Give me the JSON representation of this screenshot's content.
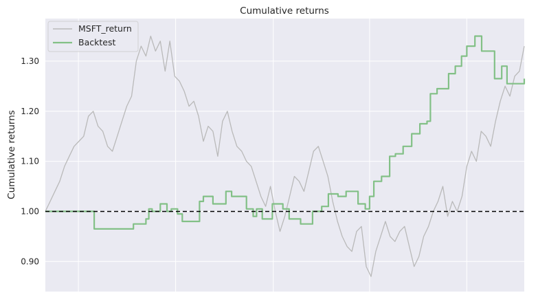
{
  "chart_data": {
    "type": "line",
    "title": "Cumulative returns",
    "xlabel": "",
    "ylabel": "Cumulative returns",
    "ylim": [
      0.84,
      1.385
    ],
    "xlim": [
      0,
      100
    ],
    "y_ticks": [
      0.9,
      1.0,
      1.1,
      1.2,
      1.3
    ],
    "y_tick_labels": [
      "0.90",
      "1.00",
      "1.10",
      "1.20",
      "1.30"
    ],
    "x_grid_positions": [
      6.9,
      27.2,
      47.6,
      67.7,
      88.0
    ],
    "x_tick_labels": [],
    "grid": true,
    "legend_position": "top-left",
    "reference_line": {
      "y": 1.0,
      "style": "dashed",
      "color": "#000000"
    },
    "colors": {
      "background": "#eaeaf2",
      "grid": "#ffffff",
      "msft": "#b9b9b9",
      "backtest": "#82c086",
      "reference": "#000000"
    },
    "series": [
      {
        "name": "MSFT_return",
        "style": "thin",
        "x": [
          0,
          1,
          2,
          3,
          4,
          5,
          6,
          7,
          8,
          9,
          10,
          11,
          12,
          13,
          14,
          15,
          16,
          17,
          18,
          19,
          20,
          21,
          22,
          23,
          24,
          25,
          26,
          27,
          28,
          29,
          30,
          31,
          32,
          33,
          34,
          35,
          36,
          37,
          38,
          39,
          40,
          41,
          42,
          43,
          44,
          45,
          46,
          47,
          48,
          49,
          50,
          51,
          52,
          53,
          54,
          55,
          56,
          57,
          58,
          59,
          60,
          61,
          62,
          63,
          64,
          65,
          66,
          67,
          68,
          69,
          70,
          71,
          72,
          73,
          74,
          75,
          76,
          77,
          78,
          79,
          80,
          81,
          82,
          83,
          84,
          85,
          86,
          87,
          88,
          89,
          90,
          91,
          92,
          93,
          94,
          95,
          96,
          97,
          98,
          99,
          100
        ],
        "values": [
          1.0,
          1.02,
          1.04,
          1.06,
          1.09,
          1.11,
          1.13,
          1.14,
          1.15,
          1.19,
          1.2,
          1.17,
          1.16,
          1.13,
          1.12,
          1.15,
          1.18,
          1.21,
          1.23,
          1.3,
          1.33,
          1.31,
          1.35,
          1.32,
          1.34,
          1.28,
          1.34,
          1.27,
          1.26,
          1.24,
          1.21,
          1.22,
          1.19,
          1.14,
          1.17,
          1.16,
          1.11,
          1.18,
          1.2,
          1.16,
          1.13,
          1.12,
          1.1,
          1.09,
          1.06,
          1.03,
          1.01,
          1.05,
          1.0,
          0.96,
          0.99,
          1.03,
          1.07,
          1.06,
          1.04,
          1.08,
          1.12,
          1.13,
          1.1,
          1.07,
          1.02,
          0.98,
          0.95,
          0.93,
          0.92,
          0.96,
          0.97,
          0.89,
          0.87,
          0.92,
          0.95,
          0.98,
          0.95,
          0.94,
          0.96,
          0.97,
          0.93,
          0.89,
          0.91,
          0.95,
          0.97,
          1.0,
          1.02,
          1.05,
          0.99,
          1.02,
          1.0,
          1.03,
          1.09,
          1.12,
          1.1,
          1.16,
          1.15,
          1.13,
          1.18,
          1.22,
          1.25,
          1.23,
          1.27,
          1.28,
          1.33
        ]
      },
      {
        "name": "Backtest",
        "style": "step",
        "x": [
          0,
          9.5,
          10.2,
          17.8,
          18.4,
          21,
          21.6,
          22.3,
          24,
          25.4,
          26.3,
          27.6,
          28.6,
          32.2,
          33,
          35,
          37.7,
          38.9,
          42,
          43.4,
          44.1,
          45.3,
          47.4,
          49.6,
          50.9,
          53.3,
          55.8,
          57.7,
          59.1,
          61.1,
          62.8,
          65.3,
          66.8,
          67.7,
          68.6,
          70.2,
          71.9,
          73.1,
          74.7,
          76.5,
          78.2,
          79.7,
          80.4,
          81.8,
          84.2,
          85.6,
          86.9,
          88,
          89.7,
          91.1,
          93.8,
          95.3,
          96.4,
          100
        ],
        "values": [
          1.0,
          1.0,
          0.965,
          0.965,
          0.975,
          0.985,
          1.005,
          1.0,
          1.015,
          1.0,
          1.005,
          0.995,
          0.98,
          1.02,
          1.03,
          1.015,
          1.04,
          1.03,
          1.005,
          0.99,
          1.005,
          0.985,
          1.015,
          1.005,
          0.985,
          0.975,
          1.0,
          1.01,
          1.035,
          1.03,
          1.04,
          1.015,
          1.005,
          1.03,
          1.06,
          1.07,
          1.11,
          1.115,
          1.13,
          1.155,
          1.175,
          1.18,
          1.235,
          1.245,
          1.275,
          1.29,
          1.31,
          1.33,
          1.35,
          1.32,
          1.265,
          1.29,
          1.255,
          1.265
        ]
      }
    ]
  }
}
